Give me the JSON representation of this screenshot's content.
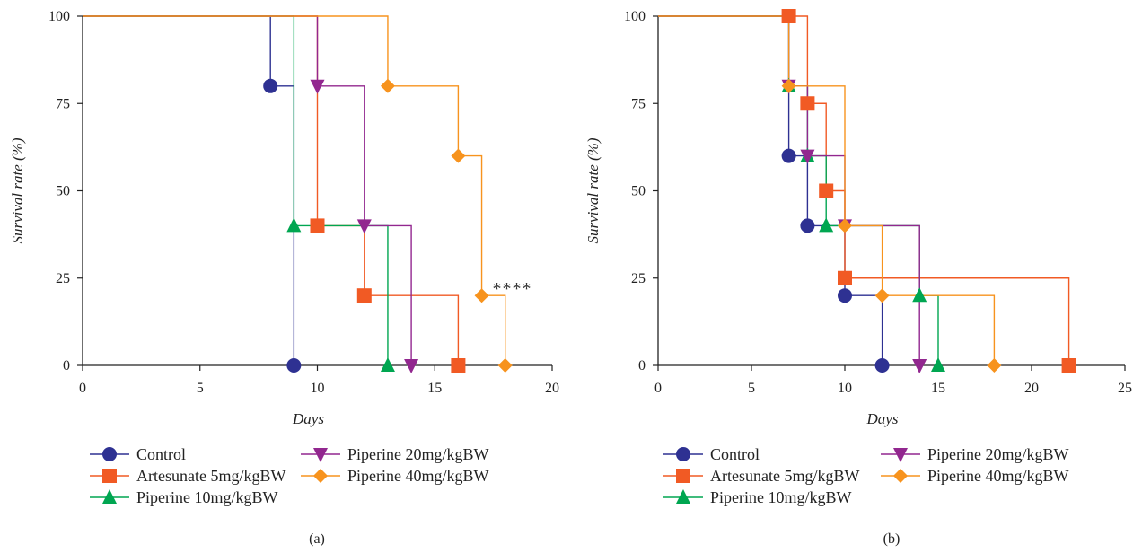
{
  "series_colors": {
    "control": "#2e3192",
    "artesunate": "#f15a24",
    "pip10": "#00a651",
    "pip20": "#92278f",
    "pip40": "#f7931e"
  },
  "chart_data": [
    {
      "id": "a",
      "type": "line",
      "subtype": "kaplan-meier step",
      "caption": "(a)",
      "xlabel": "Days",
      "ylabel": "Survival rate (%)",
      "xlim": [
        0,
        20
      ],
      "ylim": [
        0,
        100
      ],
      "xticks": [
        0,
        5,
        10,
        15,
        20
      ],
      "yticks": [
        0,
        25,
        50,
        75,
        100
      ],
      "annotation": {
        "text": "****",
        "x": 18.3,
        "y": 20
      },
      "series": [
        {
          "key": "control",
          "name": "Control",
          "marker": "circle",
          "steps": [
            [
              0,
              100
            ],
            [
              8,
              80
            ],
            [
              9,
              0
            ]
          ],
          "markers": [
            [
              8,
              80
            ],
            [
              9,
              0
            ]
          ]
        },
        {
          "key": "artesunate",
          "name": "Artesunate 5mg/kgBW",
          "marker": "square",
          "steps": [
            [
              0,
              100
            ],
            [
              10,
              40
            ],
            [
              12,
              20
            ],
            [
              16,
              0
            ]
          ],
          "markers": [
            [
              10,
              40
            ],
            [
              12,
              20
            ],
            [
              16,
              0
            ]
          ]
        },
        {
          "key": "pip10",
          "name": "Piperine 10mg/kgBW",
          "marker": "triangle-up",
          "steps": [
            [
              0,
              100
            ],
            [
              9,
              40
            ],
            [
              13,
              0
            ]
          ],
          "markers": [
            [
              9,
              40
            ],
            [
              13,
              0
            ]
          ]
        },
        {
          "key": "pip20",
          "name": "Piperine 20mg/kgBW",
          "marker": "triangle-down",
          "steps": [
            [
              0,
              100
            ],
            [
              10,
              80
            ],
            [
              12,
              40
            ],
            [
              14,
              0
            ]
          ],
          "markers": [
            [
              10,
              80
            ],
            [
              12,
              40
            ],
            [
              14,
              0
            ]
          ]
        },
        {
          "key": "pip40",
          "name": "Piperine 40mg/kgBW",
          "marker": "diamond",
          "steps": [
            [
              0,
              100
            ],
            [
              13,
              80
            ],
            [
              16,
              60
            ],
            [
              17,
              20
            ],
            [
              18,
              0
            ]
          ],
          "markers": [
            [
              13,
              80
            ],
            [
              16,
              60
            ],
            [
              17,
              20
            ],
            [
              18,
              0
            ]
          ]
        }
      ]
    },
    {
      "id": "b",
      "type": "line",
      "subtype": "kaplan-meier step",
      "caption": "(b)",
      "xlabel": "Days",
      "ylabel": "Survival rate (%)",
      "xlim": [
        0,
        25
      ],
      "ylim": [
        0,
        100
      ],
      "xticks": [
        0,
        5,
        10,
        15,
        20,
        25
      ],
      "yticks": [
        0,
        25,
        50,
        75,
        100
      ],
      "series": [
        {
          "key": "control",
          "name": "Control",
          "marker": "circle",
          "steps": [
            [
              0,
              100
            ],
            [
              7,
              60
            ],
            [
              8,
              40
            ],
            [
              10,
              20
            ],
            [
              12,
              0
            ]
          ],
          "markers": [
            [
              7,
              60
            ],
            [
              8,
              40
            ],
            [
              10,
              20
            ],
            [
              12,
              0
            ]
          ]
        },
        {
          "key": "artesunate",
          "name": "Artesunate 5mg/kgBW",
          "marker": "square",
          "steps": [
            [
              0,
              100
            ],
            [
              8,
              75
            ],
            [
              9,
              50
            ],
            [
              10,
              25
            ],
            [
              22,
              0
            ]
          ],
          "markers": [
            [
              7,
              100
            ],
            [
              8,
              75
            ],
            [
              9,
              50
            ],
            [
              10,
              25
            ],
            [
              22,
              0
            ]
          ]
        },
        {
          "key": "pip10",
          "name": "Piperine 10mg/kgBW",
          "marker": "triangle-up",
          "steps": [
            [
              0,
              100
            ],
            [
              7,
              80
            ],
            [
              8,
              60
            ],
            [
              9,
              40
            ],
            [
              14,
              20
            ],
            [
              15,
              0
            ]
          ],
          "markers": [
            [
              7,
              80
            ],
            [
              8,
              60
            ],
            [
              9,
              40
            ],
            [
              14,
              20
            ],
            [
              15,
              0
            ]
          ]
        },
        {
          "key": "pip20",
          "name": "Piperine 20mg/kgBW",
          "marker": "triangle-down",
          "steps": [
            [
              0,
              100
            ],
            [
              7,
              80
            ],
            [
              8,
              60
            ],
            [
              10,
              40
            ],
            [
              14,
              0
            ]
          ],
          "markers": [
            [
              7,
              80
            ],
            [
              8,
              60
            ],
            [
              10,
              40
            ],
            [
              14,
              0
            ]
          ]
        },
        {
          "key": "pip40",
          "name": "Piperine 40mg/kgBW",
          "marker": "diamond",
          "steps": [
            [
              0,
              100
            ],
            [
              7,
              80
            ],
            [
              10,
              40
            ],
            [
              12,
              20
            ],
            [
              18,
              0
            ]
          ],
          "markers": [
            [
              7,
              80
            ],
            [
              10,
              40
            ],
            [
              12,
              20
            ],
            [
              18,
              0
            ]
          ]
        }
      ]
    }
  ]
}
